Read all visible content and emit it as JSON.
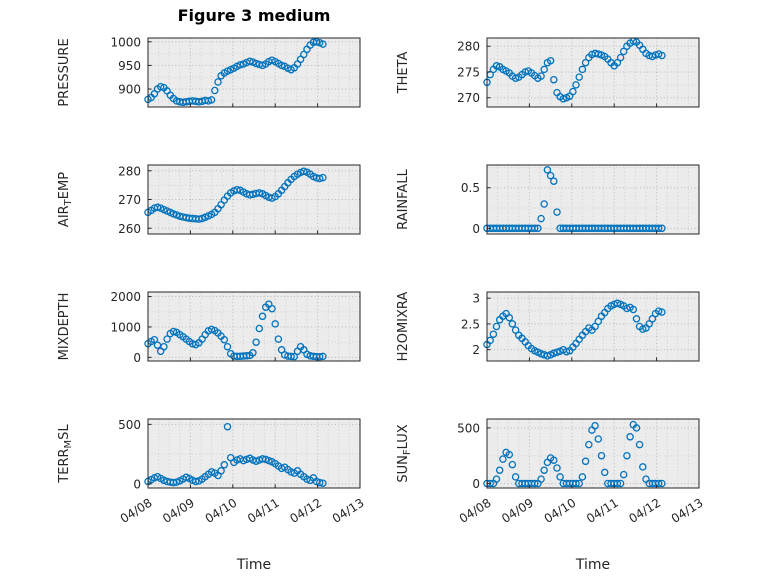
{
  "colors": {
    "marker": "#0072BD",
    "axis": "#262626",
    "grid_major": "#b8b8b8",
    "grid_minor": "#cfcfcf",
    "plot_bg": "#ececec",
    "text": "#262626"
  },
  "chart_data": {
    "type": "scatter",
    "title": "Figure 3 medium",
    "xlabel": "Time",
    "layout": {
      "rows": 4,
      "cols": 2,
      "grid": "dotted",
      "legend": "none"
    },
    "x_unit": "days since 04/08",
    "xlim": [
      0,
      5
    ],
    "xticks": [
      0,
      1,
      2,
      3,
      4,
      5
    ],
    "xtick_labels": [
      "04/08",
      "04/09",
      "04/10",
      "04/11",
      "04/12",
      "04/13"
    ],
    "marker": {
      "shape": "open-circle",
      "color": "#0072BD"
    },
    "x": [
      0,
      0.075,
      0.15,
      0.225,
      0.3,
      0.375,
      0.45,
      0.525,
      0.6,
      0.675,
      0.75,
      0.825,
      0.9,
      0.975,
      1.05,
      1.125,
      1.2,
      1.275,
      1.35,
      1.425,
      1.5,
      1.575,
      1.65,
      1.725,
      1.8,
      1.875,
      1.95,
      2.025,
      2.1,
      2.175,
      2.25,
      2.325,
      2.4,
      2.475,
      2.55,
      2.625,
      2.7,
      2.775,
      2.85,
      2.925,
      3,
      3.075,
      3.15,
      3.225,
      3.3,
      3.375,
      3.45,
      3.525,
      3.6,
      3.675,
      3.75,
      3.825,
      3.9,
      3.975,
      4.05,
      4.125
    ],
    "subplots": [
      {
        "ylabel": "PRESSURE",
        "yticks": [
          900,
          950,
          1000
        ],
        "ylim": [
          862,
          1008
        ],
        "y": [
          878,
          882,
          890,
          900,
          905,
          903,
          896,
          887,
          880,
          875,
          873,
          872,
          873,
          874,
          875,
          874,
          873,
          874,
          876,
          875,
          877,
          897,
          915,
          928,
          934,
          938,
          941,
          944,
          948,
          951,
          953,
          956,
          959,
          957,
          954,
          952,
          950,
          953,
          958,
          961,
          958,
          954,
          950,
          948,
          944,
          941,
          945,
          953,
          963,
          973,
          984,
          993,
          999,
          1000,
          998,
          995
        ]
      },
      {
        "ylabel": "THETA",
        "yticks": [
          270,
          275,
          280
        ],
        "ylim": [
          268.2,
          281.6
        ],
        "y": [
          273,
          274.5,
          275.5,
          276.2,
          276,
          275.5,
          275.2,
          274.8,
          274.2,
          273.8,
          274,
          274.5,
          275,
          275.2,
          274.8,
          274.3,
          273.8,
          274.2,
          275.5,
          276.8,
          277.2,
          273.5,
          271,
          270.2,
          269.8,
          270,
          270.3,
          271.2,
          272.5,
          274,
          275.5,
          276.8,
          277.8,
          278.4,
          278.6,
          278.5,
          278.3,
          278,
          277.5,
          276.8,
          276.2,
          276.8,
          277.8,
          279,
          280,
          280.6,
          281,
          280.8,
          280.2,
          279.4,
          278.6,
          278.2,
          278,
          278.3,
          278.5,
          278.2
        ]
      },
      {
        "ylabel": "AIR_TEMP",
        "yticks": [
          260,
          270,
          280
        ],
        "ylim": [
          258,
          282
        ],
        "y": [
          265.5,
          266.2,
          267,
          267.3,
          267,
          266.5,
          266,
          265.5,
          265,
          264.6,
          264.2,
          263.9,
          263.7,
          263.5,
          263.4,
          263.3,
          263.2,
          263.4,
          263.8,
          264.3,
          264.8,
          265.5,
          266.8,
          268.2,
          269.8,
          271.2,
          272.3,
          273,
          273.4,
          273.2,
          272.6,
          272,
          271.6,
          271.8,
          272.1,
          272.3,
          272,
          271.4,
          270.8,
          270.5,
          271,
          272,
          273.2,
          274.5,
          275.8,
          277,
          278,
          278.8,
          279.4,
          279.8,
          279.5,
          278.8,
          278,
          277.5,
          277.3,
          277.6
        ]
      },
      {
        "ylabel": "RAINFALL",
        "yticks": [
          0,
          0.5
        ],
        "ylim": [
          -0.07,
          0.78
        ],
        "y": [
          0,
          0,
          0,
          0,
          0,
          0,
          0,
          0,
          0,
          0,
          0,
          0,
          0,
          0,
          0,
          0,
          0,
          0.12,
          0.3,
          0.72,
          0.65,
          0.58,
          0.2,
          0,
          0,
          0,
          0,
          0,
          0,
          0,
          0,
          0,
          0,
          0,
          0,
          0,
          0,
          0,
          0,
          0,
          0,
          0,
          0,
          0,
          0,
          0,
          0,
          0,
          0,
          0,
          0,
          0,
          0,
          0,
          0,
          0
        ]
      },
      {
        "ylabel": "MIXDEPTH",
        "yticks": [
          0,
          1000,
          2000
        ],
        "ylim": [
          -120,
          2150
        ],
        "y": [
          450,
          520,
          580,
          400,
          200,
          350,
          600,
          780,
          850,
          820,
          750,
          680,
          600,
          520,
          450,
          420,
          480,
          600,
          750,
          870,
          920,
          880,
          800,
          700,
          580,
          350,
          120,
          40,
          30,
          35,
          45,
          50,
          60,
          150,
          500,
          950,
          1350,
          1650,
          1750,
          1600,
          1100,
          600,
          250,
          80,
          40,
          30,
          25,
          200,
          350,
          250,
          100,
          50,
          30,
          25,
          20,
          30
        ]
      },
      {
        "ylabel": "H2OMIXRA",
        "yticks": [
          2,
          2.5,
          3
        ],
        "ylim": [
          1.78,
          3.12
        ],
        "y": [
          2.1,
          2.18,
          2.3,
          2.45,
          2.58,
          2.65,
          2.7,
          2.62,
          2.5,
          2.38,
          2.28,
          2.22,
          2.15,
          2.08,
          2.02,
          1.98,
          1.95,
          1.92,
          1.9,
          1.88,
          1.9,
          1.93,
          1.95,
          1.97,
          2,
          1.96,
          1.98,
          2.05,
          2.12,
          2.2,
          2.28,
          2.35,
          2.42,
          2.38,
          2.45,
          2.55,
          2.65,
          2.72,
          2.8,
          2.85,
          2.88,
          2.9,
          2.88,
          2.85,
          2.8,
          2.82,
          2.78,
          2.6,
          2.45,
          2.4,
          2.42,
          2.5,
          2.6,
          2.7,
          2.75,
          2.73
        ]
      },
      {
        "ylabel": "TERR_MSL",
        "yticks": [
          0,
          500
        ],
        "ylim": [
          -35,
          545
        ],
        "y": [
          20,
          35,
          50,
          60,
          45,
          30,
          20,
          15,
          10,
          15,
          25,
          40,
          55,
          45,
          30,
          20,
          25,
          40,
          60,
          80,
          100,
          90,
          70,
          110,
          160,
          480,
          220,
          180,
          200,
          210,
          195,
          205,
          215,
          200,
          190,
          200,
          210,
          205,
          195,
          185,
          170,
          150,
          130,
          140,
          120,
          100,
          90,
          110,
          80,
          60,
          40,
          30,
          50,
          20,
          10,
          5
        ]
      },
      {
        "ylabel": "SUN_FLUX",
        "yticks": [
          0,
          500
        ],
        "ylim": [
          -40,
          580
        ],
        "y": [
          0,
          0,
          0,
          40,
          120,
          220,
          280,
          260,
          170,
          60,
          0,
          0,
          0,
          0,
          0,
          0,
          0,
          40,
          120,
          190,
          230,
          210,
          140,
          60,
          0,
          0,
          0,
          0,
          0,
          0,
          60,
          200,
          350,
          480,
          520,
          400,
          250,
          100,
          0,
          0,
          0,
          0,
          0,
          80,
          250,
          420,
          530,
          500,
          350,
          150,
          40,
          0,
          0,
          0,
          0,
          0
        ]
      }
    ]
  }
}
